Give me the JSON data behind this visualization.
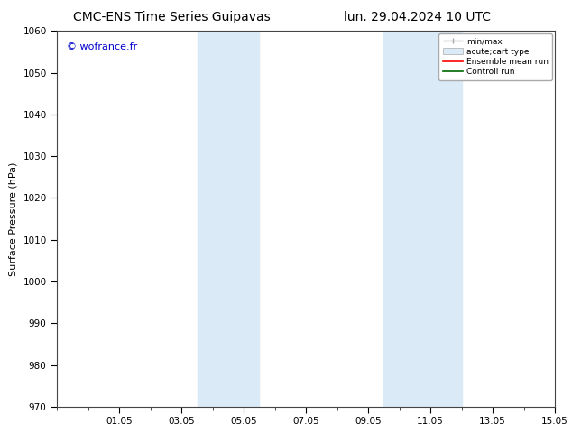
{
  "title_left": "CMC-ENS Time Series Guipavas",
  "title_right": "lun. 29.04.2024 10 UTC",
  "ylabel": "Surface Pressure (hPa)",
  "ylim": [
    970,
    1060
  ],
  "yticks": [
    970,
    980,
    990,
    1000,
    1010,
    1020,
    1030,
    1040,
    1050,
    1060
  ],
  "xlim": [
    0,
    16
  ],
  "xtick_labels": [
    "01.05",
    "03.05",
    "05.05",
    "07.05",
    "09.05",
    "11.05",
    "13.05",
    "15.05"
  ],
  "xtick_positions": [
    2,
    4,
    6,
    8,
    10,
    12,
    14,
    16
  ],
  "shaded_bands": [
    {
      "x_start": 4.5,
      "x_end": 6.5
    },
    {
      "x_start": 10.5,
      "x_end": 13.0
    }
  ],
  "shaded_color": "#daeaf6",
  "watermark": "© wofrance.fr",
  "watermark_color": "#0000cc",
  "legend_entries": [
    "min/max",
    "acute;cart type",
    "Ensemble mean run",
    "Controll run"
  ],
  "bg_color": "#ffffff",
  "plot_bg_color": "#ffffff",
  "spine_color": "#444444",
  "title_fontsize": 10,
  "axis_fontsize": 8,
  "tick_fontsize": 7.5
}
